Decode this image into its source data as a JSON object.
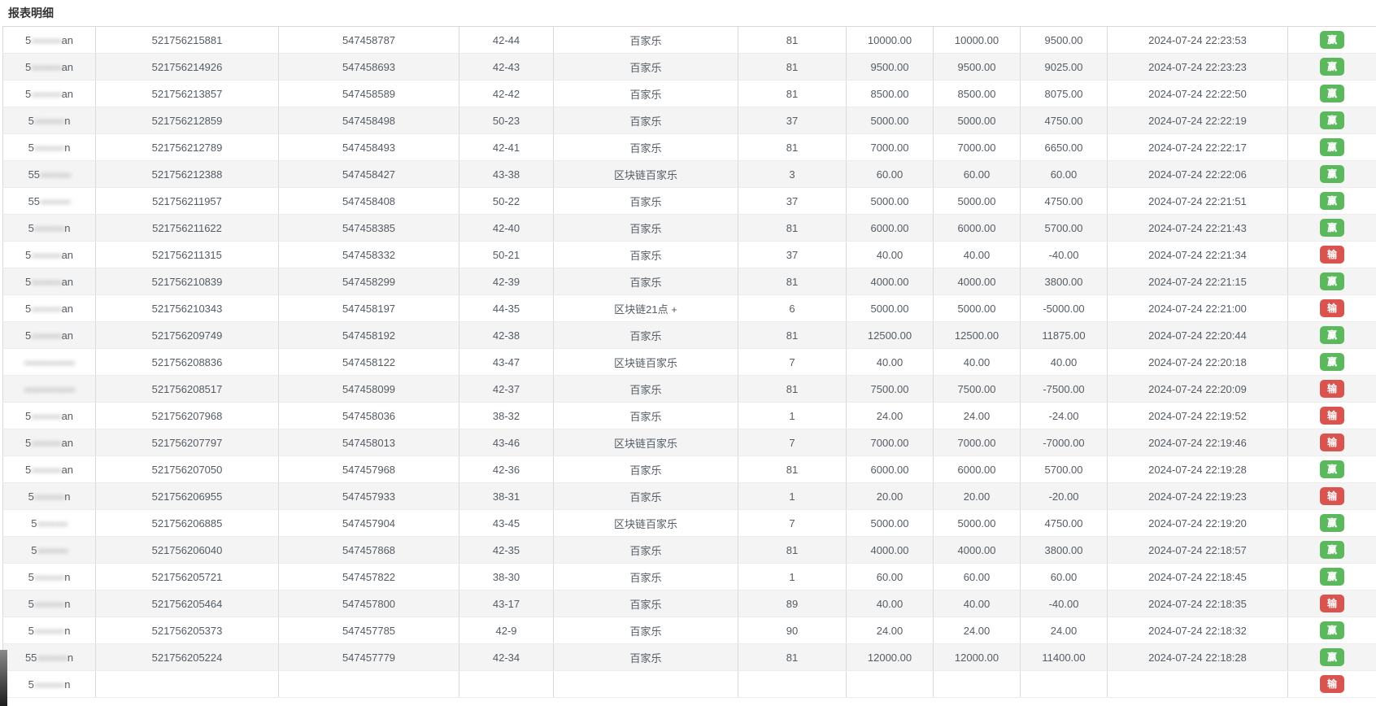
{
  "header": {
    "title": "报表明细"
  },
  "badges": {
    "win": {
      "label": "赢",
      "color": "#5cb85c"
    },
    "lose": {
      "label": "输",
      "color": "#d9534f"
    }
  },
  "colors": {
    "row_alt": "#f4f4f5",
    "border_vertical": "#d9d9d9",
    "border_horizontal": "#ececec",
    "text": "#545c64"
  },
  "table": {
    "rows": [
      {
        "user_prefix": "5",
        "user_mask": "oooooo",
        "user_suffix": "an",
        "bet_id": "521756215881",
        "round_id": "547458787",
        "session": "42-44",
        "game": "百家乐",
        "game_no": "81",
        "bet_amount": "10000.00",
        "valid_amount": "10000.00",
        "win_loss": "9500.00",
        "time": "2024-07-24 22:23:53",
        "result": "win"
      },
      {
        "user_prefix": "5",
        "user_mask": "oooooo",
        "user_suffix": "an",
        "bet_id": "521756214926",
        "round_id": "547458693",
        "session": "42-43",
        "game": "百家乐",
        "game_no": "81",
        "bet_amount": "9500.00",
        "valid_amount": "9500.00",
        "win_loss": "9025.00",
        "time": "2024-07-24 22:23:23",
        "result": "win"
      },
      {
        "user_prefix": "5",
        "user_mask": "oooooo",
        "user_suffix": "an",
        "bet_id": "521756213857",
        "round_id": "547458589",
        "session": "42-42",
        "game": "百家乐",
        "game_no": "81",
        "bet_amount": "8500.00",
        "valid_amount": "8500.00",
        "win_loss": "8075.00",
        "time": "2024-07-24 22:22:50",
        "result": "win"
      },
      {
        "user_prefix": "5",
        "user_mask": "oooooo",
        "user_suffix": "n",
        "bet_id": "521756212859",
        "round_id": "547458498",
        "session": "50-23",
        "game": "百家乐",
        "game_no": "37",
        "bet_amount": "5000.00",
        "valid_amount": "5000.00",
        "win_loss": "4750.00",
        "time": "2024-07-24 22:22:19",
        "result": "win"
      },
      {
        "user_prefix": "5",
        "user_mask": "oooooo",
        "user_suffix": "n",
        "bet_id": "521756212789",
        "round_id": "547458493",
        "session": "42-41",
        "game": "百家乐",
        "game_no": "81",
        "bet_amount": "7000.00",
        "valid_amount": "7000.00",
        "win_loss": "6650.00",
        "time": "2024-07-24 22:22:17",
        "result": "win"
      },
      {
        "user_prefix": "55",
        "user_mask": "oooooo",
        "user_suffix": "",
        "bet_id": "521756212388",
        "round_id": "547458427",
        "session": "43-38",
        "game": "区块链百家乐",
        "game_no": "3",
        "bet_amount": "60.00",
        "valid_amount": "60.00",
        "win_loss": "60.00",
        "time": "2024-07-24 22:22:06",
        "result": "win"
      },
      {
        "user_prefix": "55",
        "user_mask": "oooooo",
        "user_suffix": "",
        "bet_id": "521756211957",
        "round_id": "547458408",
        "session": "50-22",
        "game": "百家乐",
        "game_no": "37",
        "bet_amount": "5000.00",
        "valid_amount": "5000.00",
        "win_loss": "4750.00",
        "time": "2024-07-24 22:21:51",
        "result": "win"
      },
      {
        "user_prefix": "5",
        "user_mask": "oooooo",
        "user_suffix": "n",
        "bet_id": "521756211622",
        "round_id": "547458385",
        "session": "42-40",
        "game": "百家乐",
        "game_no": "81",
        "bet_amount": "6000.00",
        "valid_amount": "6000.00",
        "win_loss": "5700.00",
        "time": "2024-07-24 22:21:43",
        "result": "win"
      },
      {
        "user_prefix": "5",
        "user_mask": "oooooo",
        "user_suffix": "an",
        "bet_id": "521756211315",
        "round_id": "547458332",
        "session": "50-21",
        "game": "百家乐",
        "game_no": "37",
        "bet_amount": "40.00",
        "valid_amount": "40.00",
        "win_loss": "-40.00",
        "time": "2024-07-24 22:21:34",
        "result": "lose"
      },
      {
        "user_prefix": "5",
        "user_mask": "oooooo",
        "user_suffix": "an",
        "bet_id": "521756210839",
        "round_id": "547458299",
        "session": "42-39",
        "game": "百家乐",
        "game_no": "81",
        "bet_amount": "4000.00",
        "valid_amount": "4000.00",
        "win_loss": "3800.00",
        "time": "2024-07-24 22:21:15",
        "result": "win"
      },
      {
        "user_prefix": "5",
        "user_mask": "oooooo",
        "user_suffix": "an",
        "bet_id": "521756210343",
        "round_id": "547458197",
        "session": "44-35",
        "game": "区块链21点 +",
        "game_no": "6",
        "bet_amount": "5000.00",
        "valid_amount": "5000.00",
        "win_loss": "-5000.00",
        "time": "2024-07-24 22:21:00",
        "result": "lose"
      },
      {
        "user_prefix": "5",
        "user_mask": "oooooo",
        "user_suffix": "an",
        "bet_id": "521756209749",
        "round_id": "547458192",
        "session": "42-38",
        "game": "百家乐",
        "game_no": "81",
        "bet_amount": "12500.00",
        "valid_amount": "12500.00",
        "win_loss": "11875.00",
        "time": "2024-07-24 22:20:44",
        "result": "win"
      },
      {
        "user_prefix": "",
        "user_mask": "oooooooooo",
        "user_suffix": "",
        "bet_id": "521756208836",
        "round_id": "547458122",
        "session": "43-47",
        "game": "区块链百家乐",
        "game_no": "7",
        "bet_amount": "40.00",
        "valid_amount": "40.00",
        "win_loss": "40.00",
        "time": "2024-07-24 22:20:18",
        "result": "win"
      },
      {
        "user_prefix": "",
        "user_mask": "oooooooooo",
        "user_suffix": "",
        "bet_id": "521756208517",
        "round_id": "547458099",
        "session": "42-37",
        "game": "百家乐",
        "game_no": "81",
        "bet_amount": "7500.00",
        "valid_amount": "7500.00",
        "win_loss": "-7500.00",
        "time": "2024-07-24 22:20:09",
        "result": "lose"
      },
      {
        "user_prefix": "5",
        "user_mask": "oooooo",
        "user_suffix": "an",
        "bet_id": "521756207968",
        "round_id": "547458036",
        "session": "38-32",
        "game": "百家乐",
        "game_no": "1",
        "bet_amount": "24.00",
        "valid_amount": "24.00",
        "win_loss": "-24.00",
        "time": "2024-07-24 22:19:52",
        "result": "lose"
      },
      {
        "user_prefix": "5",
        "user_mask": "oooooo",
        "user_suffix": "an",
        "bet_id": "521756207797",
        "round_id": "547458013",
        "session": "43-46",
        "game": "区块链百家乐",
        "game_no": "7",
        "bet_amount": "7000.00",
        "valid_amount": "7000.00",
        "win_loss": "-7000.00",
        "time": "2024-07-24 22:19:46",
        "result": "lose"
      },
      {
        "user_prefix": "5",
        "user_mask": "oooooo",
        "user_suffix": "an",
        "bet_id": "521756207050",
        "round_id": "547457968",
        "session": "42-36",
        "game": "百家乐",
        "game_no": "81",
        "bet_amount": "6000.00",
        "valid_amount": "6000.00",
        "win_loss": "5700.00",
        "time": "2024-07-24 22:19:28",
        "result": "win"
      },
      {
        "user_prefix": "5",
        "user_mask": "oooooo",
        "user_suffix": "n",
        "bet_id": "521756206955",
        "round_id": "547457933",
        "session": "38-31",
        "game": "百家乐",
        "game_no": "1",
        "bet_amount": "20.00",
        "valid_amount": "20.00",
        "win_loss": "-20.00",
        "time": "2024-07-24 22:19:23",
        "result": "lose"
      },
      {
        "user_prefix": "5",
        "user_mask": "oooooo",
        "user_suffix": "",
        "bet_id": "521756206885",
        "round_id": "547457904",
        "session": "43-45",
        "game": "区块链百家乐",
        "game_no": "7",
        "bet_amount": "5000.00",
        "valid_amount": "5000.00",
        "win_loss": "4750.00",
        "time": "2024-07-24 22:19:20",
        "result": "win"
      },
      {
        "user_prefix": "5",
        "user_mask": "oooooo",
        "user_suffix": "",
        "bet_id": "521756206040",
        "round_id": "547457868",
        "session": "42-35",
        "game": "百家乐",
        "game_no": "81",
        "bet_amount": "4000.00",
        "valid_amount": "4000.00",
        "win_loss": "3800.00",
        "time": "2024-07-24 22:18:57",
        "result": "win"
      },
      {
        "user_prefix": "5",
        "user_mask": "oooooo",
        "user_suffix": "n",
        "bet_id": "521756205721",
        "round_id": "547457822",
        "session": "38-30",
        "game": "百家乐",
        "game_no": "1",
        "bet_amount": "60.00",
        "valid_amount": "60.00",
        "win_loss": "60.00",
        "time": "2024-07-24 22:18:45",
        "result": "win"
      },
      {
        "user_prefix": "5",
        "user_mask": "oooooo",
        "user_suffix": "n",
        "bet_id": "521756205464",
        "round_id": "547457800",
        "session": "43-17",
        "game": "百家乐",
        "game_no": "89",
        "bet_amount": "40.00",
        "valid_amount": "40.00",
        "win_loss": "-40.00",
        "time": "2024-07-24 22:18:35",
        "result": "lose"
      },
      {
        "user_prefix": "5",
        "user_mask": "oooooo",
        "user_suffix": "n",
        "bet_id": "521756205373",
        "round_id": "547457785",
        "session": "42-9",
        "game": "百家乐",
        "game_no": "90",
        "bet_amount": "24.00",
        "valid_amount": "24.00",
        "win_loss": "24.00",
        "time": "2024-07-24 22:18:32",
        "result": "win"
      },
      {
        "user_prefix": "55",
        "user_mask": "oooooo",
        "user_suffix": "n",
        "bet_id": "521756205224",
        "round_id": "547457779",
        "session": "42-34",
        "game": "百家乐",
        "game_no": "81",
        "bet_amount": "12000.00",
        "valid_amount": "12000.00",
        "win_loss": "11400.00",
        "time": "2024-07-24 22:18:28",
        "result": "win"
      },
      {
        "user_prefix": "5",
        "user_mask": "oooooo",
        "user_suffix": "n",
        "bet_id": "",
        "round_id": "",
        "session": "",
        "game": "",
        "game_no": "",
        "bet_amount": "",
        "valid_amount": "",
        "win_loss": "",
        "time": "",
        "result": "lose"
      }
    ]
  }
}
